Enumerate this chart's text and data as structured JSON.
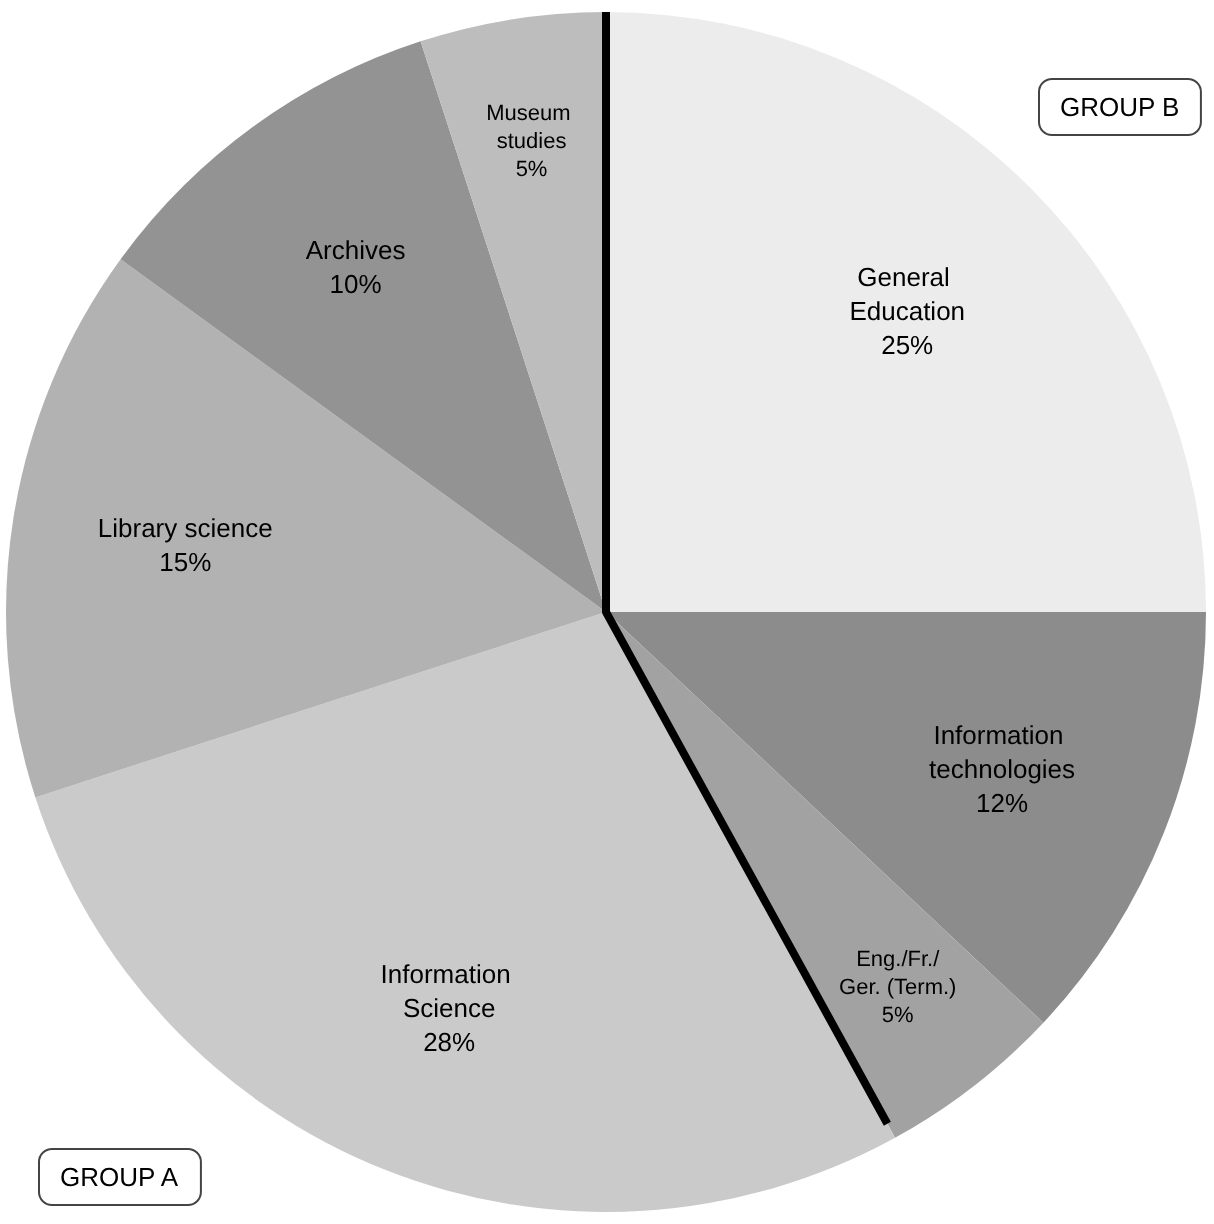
{
  "chart_data": {
    "type": "pie",
    "categories": [
      "General Education",
      "Information technologies",
      "Eng./Fr./Ger. (Term.)",
      "Information Science",
      "Library science",
      "Archives",
      "Museum studies"
    ],
    "values": [
      25,
      12,
      5,
      28,
      15,
      10,
      5
    ],
    "colors": [
      "#ececec",
      "#8c8c8c",
      "#a2a2a2",
      "#cacaca",
      "#b2b2b2",
      "#939393",
      "#bdbdbd"
    ],
    "value_labels": [
      "25%",
      "12%",
      "5%",
      "28%",
      "15%",
      "10%",
      "5%"
    ],
    "annotations": [
      "GROUP B",
      "GROUP A"
    ]
  }
}
